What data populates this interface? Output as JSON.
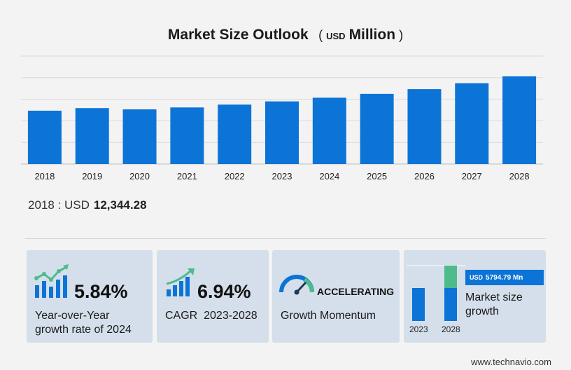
{
  "header": {
    "title": "Market Size Outlook",
    "currency": "USD",
    "unit": "Million"
  },
  "chart_data": {
    "type": "bar",
    "categories": [
      "2018",
      "2019",
      "2020",
      "2021",
      "2022",
      "2023",
      "2024",
      "2025",
      "2026",
      "2027",
      "2028"
    ],
    "values": [
      12344.28,
      12950,
      12650,
      13100,
      13750,
      14500,
      15350,
      16250,
      17350,
      18700,
      20300
    ],
    "ylim": [
      0,
      25000
    ],
    "grid": true,
    "colors": {
      "bar": "#0c74d6",
      "grid": "#d9d9d9"
    }
  },
  "start_value": {
    "label": "2018 : USD",
    "value": "12,344.28"
  },
  "cards": {
    "yoy": {
      "value": "5.84%",
      "label_line1": "Year-over-Year",
      "label_line2": "growth rate of 2024",
      "icon": "growth-chart-icon"
    },
    "cagr": {
      "value": "6.94%",
      "label": "CAGR  2023-2028",
      "icon": "trend-bars-icon"
    },
    "momentum": {
      "value": "ACCELERATING",
      "label": "Growth Momentum",
      "icon": "speedometer-icon"
    },
    "market_growth": {
      "badge_currency": "USD",
      "badge_value": "5794.79 Mn",
      "label_line1": "Market size",
      "label_line2": "growth",
      "year_start": "2023",
      "year_end": "2028",
      "colors": {
        "base": "#0c74d6",
        "growth": "#4dbb8c"
      }
    }
  },
  "footer": {
    "site": "www.technavio.com"
  }
}
